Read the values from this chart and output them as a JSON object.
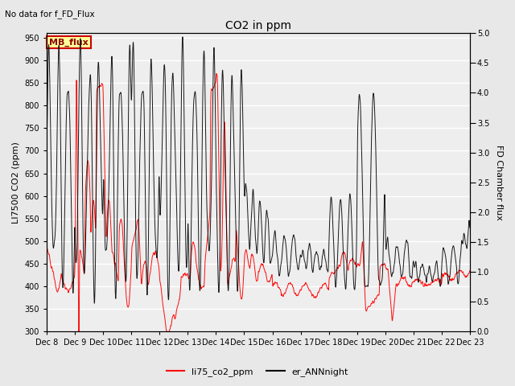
{
  "title": "CO2 in ppm",
  "top_left_text": "No data for f_FD_Flux",
  "ylabel_left": "LI7500 CO2 (ppm)",
  "ylabel_right": "FD Chamber flux",
  "ylim_left": [
    300,
    960
  ],
  "ylim_right": [
    0.0,
    5.0
  ],
  "yticks_left": [
    300,
    350,
    400,
    450,
    500,
    550,
    600,
    650,
    700,
    750,
    800,
    850,
    900,
    950
  ],
  "yticks_right": [
    0.0,
    0.5,
    1.0,
    1.5,
    2.0,
    2.5,
    3.0,
    3.5,
    4.0,
    4.5,
    5.0
  ],
  "xtick_labels": [
    "Dec 8",
    "Dec 9",
    "Dec 10",
    "Dec 11",
    "Dec 12",
    "Dec 13",
    "Dec 14",
    "Dec 15",
    "Dec 16",
    "Dec 17",
    "Dec 18",
    "Dec 19",
    "Dec 20",
    "Dec 21",
    "Dec 22",
    "Dec 23"
  ],
  "legend_entries": [
    "li75_co2_ppm",
    "er_ANNnight"
  ],
  "line1_color": "#ff0000",
  "line2_color": "#000000",
  "background_color": "#e8e8e8",
  "plot_bg_color": "#eeeeee",
  "mb_flux_box_color": "#ffff99",
  "mb_flux_box_edge": "#cc0000",
  "mb_flux_text": "MB_flux",
  "grid_color": "#ffffff",
  "n_points": 3000
}
